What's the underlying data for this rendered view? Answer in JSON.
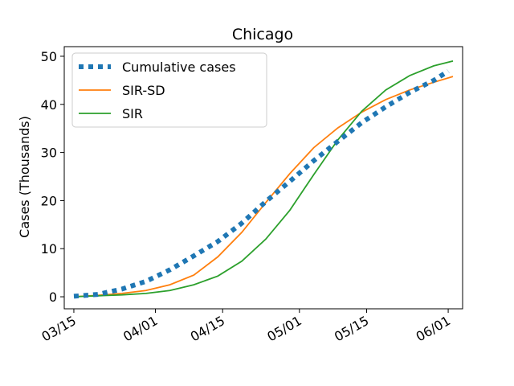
{
  "chart_data": {
    "type": "line",
    "title": "Chicago",
    "xlabel": "",
    "ylabel": "Cases (Thousands)",
    "x_axis": {
      "type": "date",
      "range": [
        "2020-03-13",
        "2020-06-04"
      ],
      "ticks": [
        {
          "date": "2020-03-15",
          "label": "03/15"
        },
        {
          "date": "2020-04-01",
          "label": "04/01"
        },
        {
          "date": "2020-04-15",
          "label": "04/15"
        },
        {
          "date": "2020-05-01",
          "label": "05/01"
        },
        {
          "date": "2020-05-15",
          "label": "05/15"
        },
        {
          "date": "2020-06-01",
          "label": "06/01"
        }
      ],
      "tick_label_rotation": 30
    },
    "y_axis": {
      "range": [
        -2.5,
        52
      ],
      "ticks": [
        0,
        10,
        20,
        30,
        40,
        50
      ]
    },
    "grid": false,
    "legend": "top-left",
    "series": [
      {
        "name": "Cumulative cases",
        "color": "#1f77b4",
        "style": "dotted",
        "points": [
          [
            "2020-03-15",
            0.1
          ],
          [
            "2020-03-20",
            0.5
          ],
          [
            "2020-03-25",
            1.6
          ],
          [
            "2020-03-30",
            3.2
          ],
          [
            "2020-04-04",
            5.6
          ],
          [
            "2020-04-09",
            8.5
          ],
          [
            "2020-04-14",
            11.5
          ],
          [
            "2020-04-19",
            15.3
          ],
          [
            "2020-04-24",
            19.8
          ],
          [
            "2020-04-29",
            24.0
          ],
          [
            "2020-05-04",
            28.3
          ],
          [
            "2020-05-09",
            32.3
          ],
          [
            "2020-05-14",
            36.2
          ],
          [
            "2020-05-19",
            39.5
          ],
          [
            "2020-05-24",
            42.5
          ],
          [
            "2020-05-29",
            45.0
          ],
          [
            "2020-06-01",
            46.9
          ]
        ]
      },
      {
        "name": "SIR-SD",
        "color": "#ff7f0e",
        "style": "solid",
        "points": [
          [
            "2020-03-15",
            0.0
          ],
          [
            "2020-03-20",
            0.3
          ],
          [
            "2020-03-25",
            0.7
          ],
          [
            "2020-03-30",
            1.3
          ],
          [
            "2020-04-04",
            2.5
          ],
          [
            "2020-04-09",
            4.5
          ],
          [
            "2020-04-14",
            8.3
          ],
          [
            "2020-04-19",
            13.4
          ],
          [
            "2020-04-24",
            19.6
          ],
          [
            "2020-04-29",
            25.6
          ],
          [
            "2020-05-04",
            31.0
          ],
          [
            "2020-05-09",
            35.1
          ],
          [
            "2020-05-14",
            38.4
          ],
          [
            "2020-05-19",
            41.0
          ],
          [
            "2020-05-24",
            43.0
          ],
          [
            "2020-05-29",
            44.6
          ],
          [
            "2020-06-02",
            45.8
          ]
        ]
      },
      {
        "name": "SIR",
        "color": "#2ca02c",
        "style": "solid",
        "points": [
          [
            "2020-03-15",
            0.0
          ],
          [
            "2020-03-20",
            0.2
          ],
          [
            "2020-03-25",
            0.4
          ],
          [
            "2020-03-30",
            0.7
          ],
          [
            "2020-04-04",
            1.3
          ],
          [
            "2020-04-09",
            2.5
          ],
          [
            "2020-04-14",
            4.3
          ],
          [
            "2020-04-19",
            7.4
          ],
          [
            "2020-04-24",
            12.0
          ],
          [
            "2020-04-29",
            18.0
          ],
          [
            "2020-05-04",
            25.4
          ],
          [
            "2020-05-09",
            32.6
          ],
          [
            "2020-05-14",
            38.6
          ],
          [
            "2020-05-19",
            43.0
          ],
          [
            "2020-05-24",
            46.0
          ],
          [
            "2020-05-29",
            48.0
          ],
          [
            "2020-06-02",
            49.0
          ]
        ]
      }
    ]
  }
}
